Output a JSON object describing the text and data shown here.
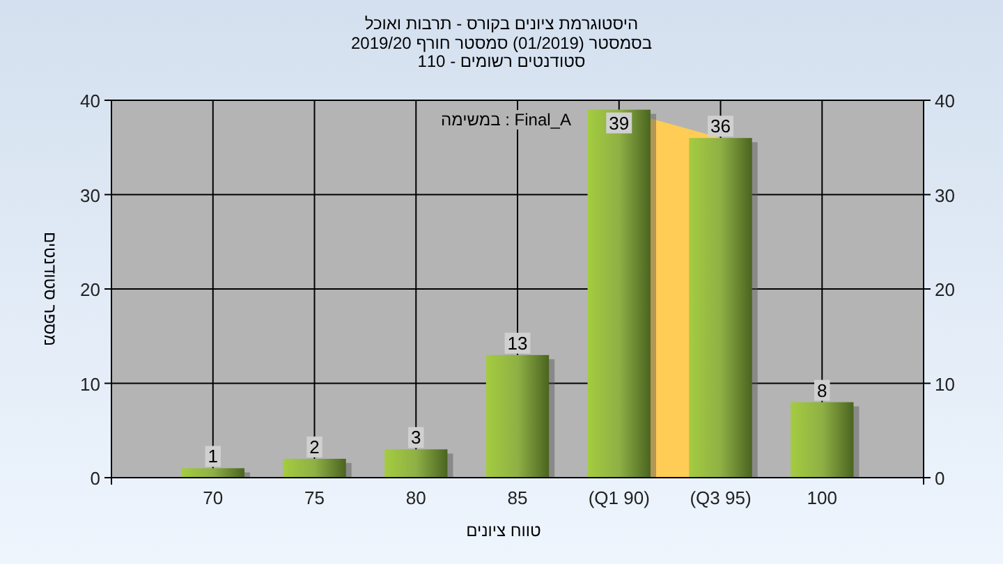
{
  "chart_data": {
    "type": "bar",
    "title": "היסטוגרמת ציונים בקורס - תרבות ואוכל",
    "subtitle": "בסמסטר  (01/2019)  סמסטר חורף 2019/20\nסטודנטים רשומים - 110",
    "xlabel": "טווח ציונים",
    "ylabel": "מספר סטודנטים",
    "categories": [
      "70",
      "75",
      "80",
      "85",
      "(Q1 90)",
      "(Q3 95)",
      "100"
    ],
    "values": [
      1,
      2,
      3,
      13,
      39,
      36,
      8
    ],
    "color": "#8fb045",
    "ylim": [
      0,
      40
    ],
    "yticks": [
      0,
      10,
      20,
      30,
      40
    ],
    "y2lim": [
      0,
      40
    ],
    "y2ticks": [
      0,
      10,
      20,
      30,
      40
    ],
    "grid": true,
    "data_labels": true,
    "bands": [
      {
        "axis": "x",
        "from": "(Q1 90)",
        "to": "(Q3 95)",
        "color": "#ffcc55"
      }
    ],
    "annotations": [
      "במשימה : Final_A"
    ]
  }
}
